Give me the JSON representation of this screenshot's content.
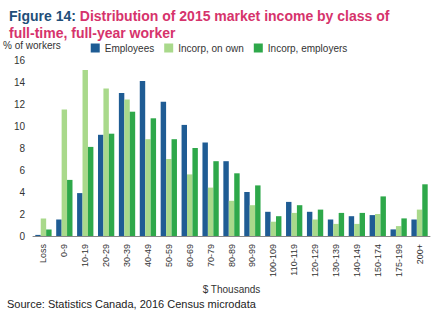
{
  "chart_data": {
    "type": "bar",
    "title": "Figure 14: Distribution of 2015 market income by class of full-time, full-year worker",
    "xlabel": "$ Thousands",
    "ylabel": "% of workers",
    "annotations": [
      "Source: Statistics Canada, 2016 Census microdata"
    ],
    "categories": [
      "Loss",
      "0-9",
      "10-19",
      "20-29",
      "30-39",
      "40-49",
      "50-59",
      "60-69",
      "70-79",
      "80-89",
      "90-99",
      "100-109",
      "110-119",
      "120-129",
      "130-139",
      "140-149",
      "150-174",
      "175-199",
      "200+"
    ],
    "series": [
      {
        "name": "Employees",
        "color": "#1f5c94",
        "values": [
          0.1,
          1.5,
          3.9,
          9.2,
          13.0,
          14.1,
          12.2,
          10.1,
          8.5,
          6.8,
          4.0,
          2.2,
          3.1,
          2.2,
          1.5,
          1.8,
          1.9,
          0.6,
          1.5
        ]
      },
      {
        "name": "Incorp, on own",
        "color": "#a9d98b",
        "values": [
          1.6,
          11.5,
          15.1,
          13.4,
          12.4,
          8.8,
          7.0,
          5.6,
          4.4,
          3.2,
          2.8,
          1.3,
          2.1,
          1.5,
          1.1,
          1.1,
          2.0,
          0.9,
          2.4
        ]
      },
      {
        "name": "Incorp, employers",
        "color": "#2ea84a",
        "values": [
          0.6,
          5.1,
          8.1,
          9.3,
          11.3,
          10.7,
          8.8,
          8.0,
          6.8,
          5.7,
          4.6,
          1.8,
          2.8,
          2.4,
          2.1,
          2.1,
          3.6,
          1.6,
          4.7
        ]
      }
    ],
    "ylim": [
      0,
      16
    ],
    "yticks": [
      0,
      2,
      4,
      6,
      8,
      10,
      12,
      14,
      16
    ],
    "grid": false,
    "legend": "top"
  }
}
